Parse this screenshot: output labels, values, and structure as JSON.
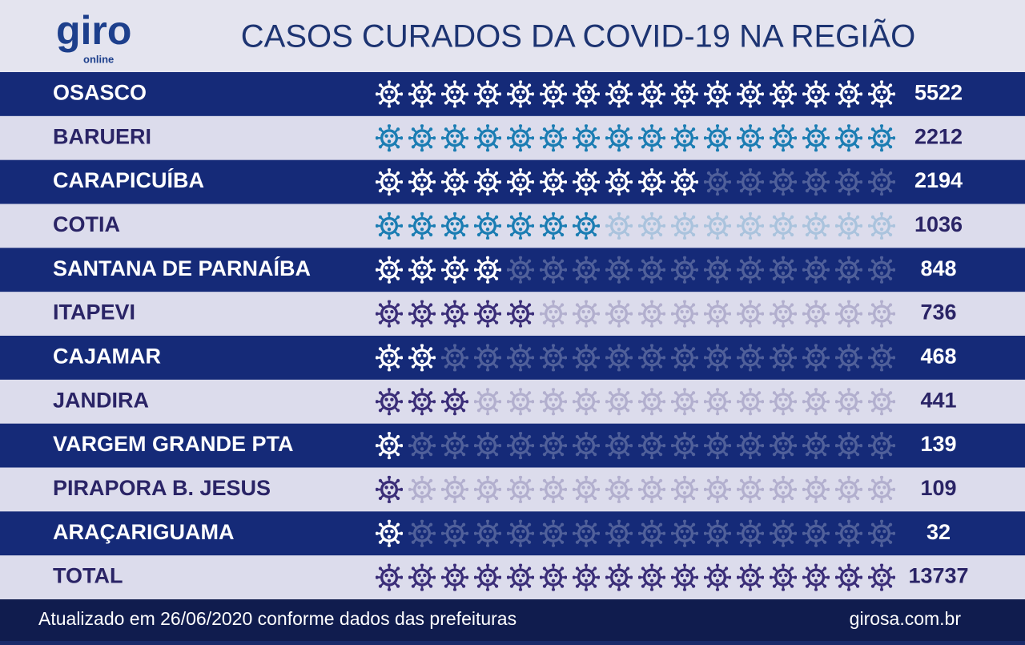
{
  "chart_data": {
    "type": "pictogram",
    "title": "CASOS CURADOS DA COVID-19 NA REGIÃO",
    "logo": {
      "brand": "giro",
      "sub": "online"
    },
    "icon_slots": 16,
    "rows": [
      {
        "name": "OSASCO",
        "value": 5522,
        "icons": 16,
        "style": "dark",
        "color": "#ffffff"
      },
      {
        "name": "BARUERI",
        "value": 2212,
        "icons": 16,
        "style": "light",
        "color": "#1b7db3"
      },
      {
        "name": "CARAPICUÍBA",
        "value": 2194,
        "icons": 10,
        "style": "dark",
        "color": "#ffffff"
      },
      {
        "name": "COTIA",
        "value": 1036,
        "icons": 7,
        "style": "light",
        "color": "#1b7db3"
      },
      {
        "name": "SANTANA DE PARNAÍBA",
        "value": 848,
        "icons": 4,
        "style": "dark",
        "color": "#ffffff"
      },
      {
        "name": "ITAPEVI",
        "value": 736,
        "icons": 5,
        "style": "light",
        "color": "#3a2d78"
      },
      {
        "name": "CAJAMAR",
        "value": 468,
        "icons": 2,
        "style": "dark",
        "color": "#ffffff"
      },
      {
        "name": "JANDIRA",
        "value": 441,
        "icons": 3,
        "style": "light",
        "color": "#3a2d78"
      },
      {
        "name": "VARGEM GRANDE PTA",
        "value": 139,
        "icons": 1,
        "style": "dark",
        "color": "#ffffff"
      },
      {
        "name": "PIRAPORA B. JESUS",
        "value": 109,
        "icons": 1,
        "style": "light",
        "color": "#3a2d78"
      },
      {
        "name": "ARAÇARIGUAMA",
        "value": 32,
        "icons": 1,
        "style": "dark",
        "color": "#ffffff"
      },
      {
        "name": "TOTAL",
        "value": 13737,
        "icons": 16,
        "style": "light",
        "color": "#3a2d78"
      }
    ],
    "footer": {
      "note": "Atualizado em 26/06/2020 conforme dados das prefeituras",
      "site": "girosa.com.br"
    }
  }
}
